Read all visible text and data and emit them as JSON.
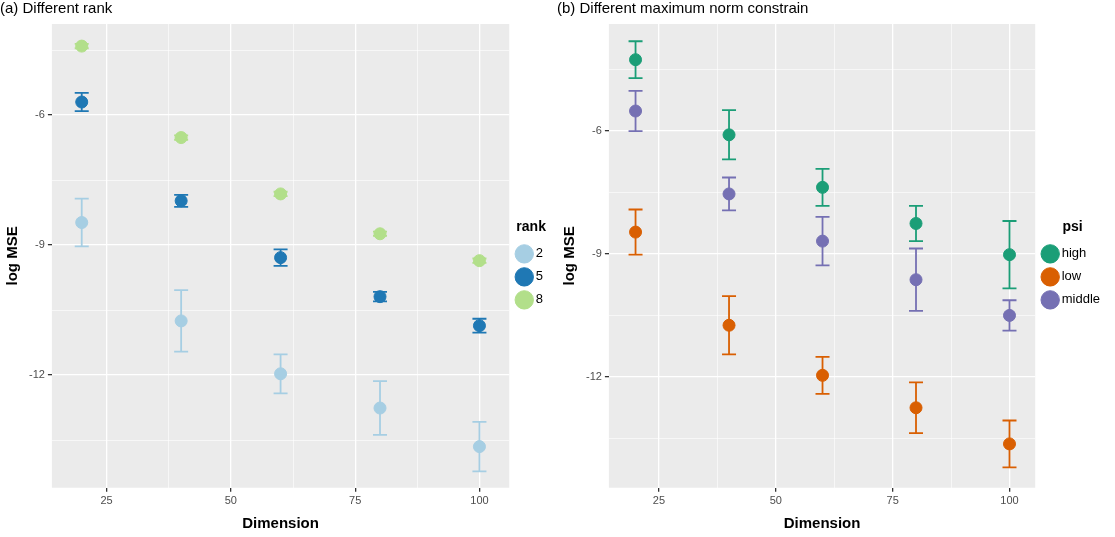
{
  "chart_data": [
    {
      "type": "scatter",
      "title": "(a) Different rank",
      "xlabel": "Dimension",
      "ylabel": "log MSE",
      "legend_title": "rank",
      "legend": "right",
      "grid": true,
      "marker": "circle",
      "x": [
        20,
        40,
        60,
        80,
        100
      ],
      "xlim": [
        14,
        106
      ],
      "xticks": [
        25,
        {
          "value": 37.5,
          "label": null
        },
        50,
        {
          "value": 62.5,
          "label": null
        },
        75,
        {
          "value": 87.5,
          "label": null
        },
        100
      ],
      "ylim": [
        -14.6,
        -3.9
      ],
      "yticks": [
        {
          "value": -4.5,
          "label": null
        },
        -6,
        {
          "value": -7.5,
          "label": null
        },
        -9,
        {
          "value": -10.5,
          "label": null
        },
        -12,
        {
          "value": -13.5,
          "label": null
        }
      ],
      "series": [
        {
          "name": "2",
          "color": "#a6cee3",
          "values": [
            -8.48,
            -10.75,
            -11.97,
            -12.76,
            -13.65
          ],
          "errors": [
            0.55,
            0.71,
            0.45,
            0.62,
            0.57
          ]
        },
        {
          "name": "5",
          "color": "#1f78b4",
          "values": [
            -5.7,
            -7.98,
            -9.29,
            -10.19,
            -10.86
          ],
          "errors": [
            0.21,
            0.14,
            0.19,
            0.11,
            0.16
          ]
        },
        {
          "name": "8",
          "color": "#b2df8a",
          "values": [
            -4.41,
            -6.52,
            -7.82,
            -8.74,
            -9.36
          ],
          "errors": [
            0.05,
            0.05,
            0.05,
            0.05,
            0.05
          ]
        }
      ]
    },
    {
      "type": "scatter",
      "title": "(b) Different maximum norm constrain",
      "xlabel": "Dimension",
      "ylabel": "log MSE",
      "legend_title": "psi",
      "legend": "right",
      "grid": true,
      "marker": "circle",
      "x": [
        20,
        40,
        60,
        80,
        100
      ],
      "xlim": [
        14.3,
        105.5
      ],
      "xticks": [
        25,
        {
          "value": 37.5,
          "label": null
        },
        50,
        {
          "value": 62.5,
          "label": null
        },
        75,
        {
          "value": 87.5,
          "label": null
        },
        100
      ],
      "ylim": [
        -14.7,
        -3.4
      ],
      "yticks": [
        {
          "value": -4.5,
          "label": null
        },
        -6,
        {
          "value": -7.5,
          "label": null
        },
        -9,
        {
          "value": -10.5,
          "label": null
        },
        -12,
        {
          "value": -13.5,
          "label": null
        }
      ],
      "series": [
        {
          "name": "high",
          "color": "#1b9e77",
          "values": [
            -4.27,
            -6.1,
            -7.38,
            -8.26,
            -9.02
          ],
          "errors": [
            0.45,
            0.6,
            0.45,
            0.43,
            0.82
          ]
        },
        {
          "name": "low",
          "color": "#d95f02",
          "values": [
            -8.47,
            -10.74,
            -11.96,
            -12.75,
            -13.63
          ],
          "errors": [
            0.55,
            0.71,
            0.45,
            0.62,
            0.57
          ]
        },
        {
          "name": "middle",
          "color": "#7570b3",
          "values": [
            -5.52,
            -7.54,
            -8.69,
            -9.63,
            -10.5
          ],
          "errors": [
            0.49,
            0.4,
            0.59,
            0.76,
            0.37
          ]
        }
      ]
    }
  ]
}
